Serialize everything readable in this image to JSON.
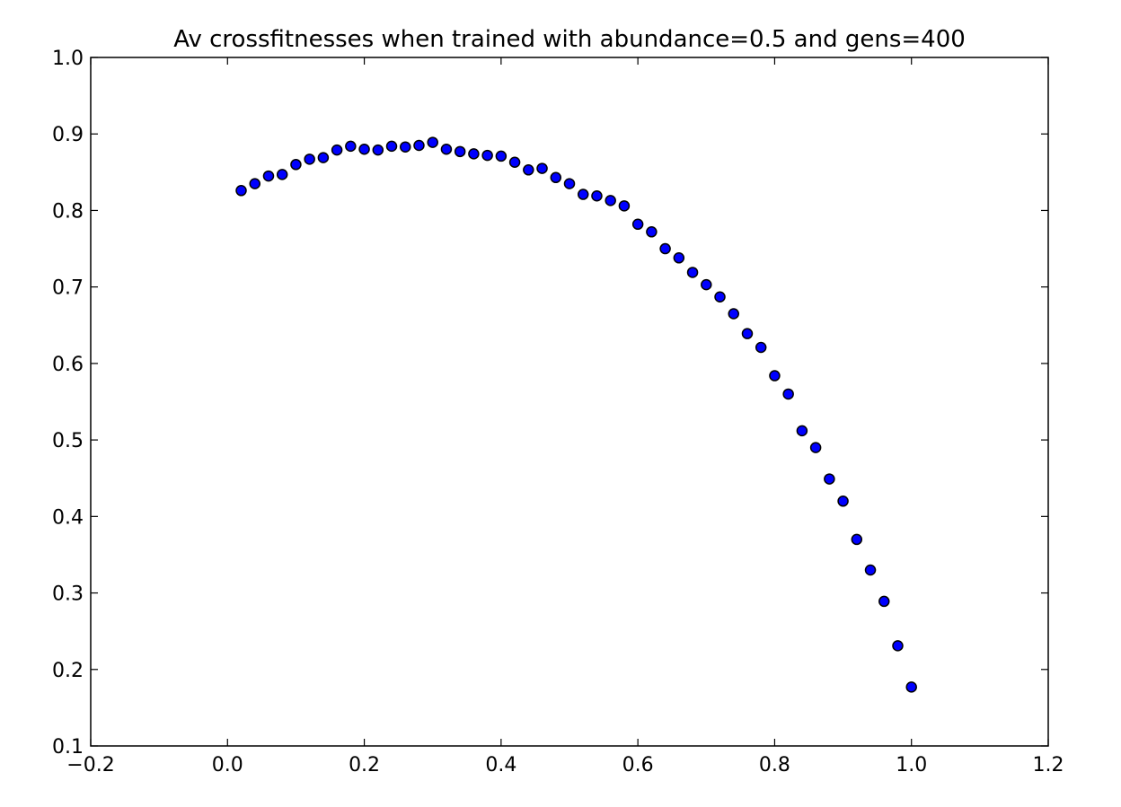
{
  "chart_data": {
    "type": "scatter",
    "title": "Av crossfitnesses when trained with abundance=0.5 and gens=400",
    "xlabel": "",
    "ylabel": "",
    "xlim": [
      -0.2,
      1.2
    ],
    "ylim": [
      0.1,
      1.0
    ],
    "grid": false,
    "x_ticks": [
      "−0.2",
      "0.0",
      "0.2",
      "0.4",
      "0.6",
      "0.8",
      "1.0",
      "1.2"
    ],
    "y_ticks": [
      "0.1",
      "0.2",
      "0.3",
      "0.4",
      "0.5",
      "0.6",
      "0.7",
      "0.8",
      "0.9",
      "1.0"
    ],
    "marker_color": "#0000ff",
    "marker_edge_color": "#000000",
    "series": [
      {
        "x": [
          0.02,
          0.04,
          0.06,
          0.08,
          0.1,
          0.12,
          0.14,
          0.16,
          0.18,
          0.2,
          0.22,
          0.24,
          0.26,
          0.28,
          0.3,
          0.32,
          0.34,
          0.36,
          0.38,
          0.4,
          0.42,
          0.44,
          0.46,
          0.48,
          0.5,
          0.52,
          0.54,
          0.56,
          0.58,
          0.6,
          0.62,
          0.64,
          0.66,
          0.68,
          0.7,
          0.72,
          0.74,
          0.76,
          0.78,
          0.8,
          0.82,
          0.84,
          0.86,
          0.88,
          0.9,
          0.92,
          0.94,
          0.96,
          0.98,
          1.0
        ],
        "y": [
          0.826,
          0.835,
          0.845,
          0.847,
          0.86,
          0.867,
          0.869,
          0.879,
          0.884,
          0.88,
          0.879,
          0.884,
          0.883,
          0.885,
          0.889,
          0.88,
          0.877,
          0.874,
          0.872,
          0.871,
          0.863,
          0.853,
          0.855,
          0.843,
          0.835,
          0.821,
          0.819,
          0.813,
          0.806,
          0.782,
          0.772,
          0.75,
          0.738,
          0.719,
          0.703,
          0.687,
          0.665,
          0.639,
          0.621,
          0.584,
          0.56,
          0.512,
          0.49,
          0.449,
          0.42,
          0.37,
          0.33,
          0.289,
          0.231,
          0.177
        ]
      }
    ]
  }
}
